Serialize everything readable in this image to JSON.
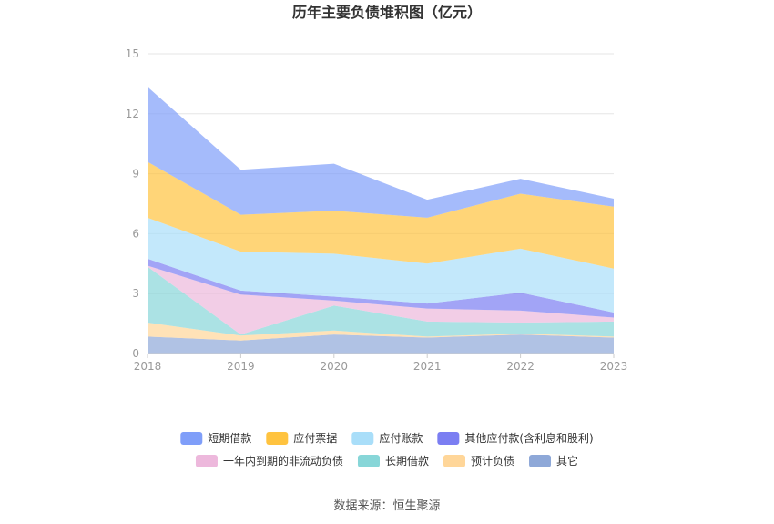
{
  "chart_data": {
    "type": "area",
    "stacked": true,
    "title": "历年主要负债堆积图（亿元）",
    "xlabel": "",
    "ylabel": "",
    "x": [
      "2018",
      "2019",
      "2020",
      "2021",
      "2022",
      "2023"
    ],
    "ylim": [
      0,
      15
    ],
    "yticks": [
      0,
      3,
      6,
      9,
      12,
      15
    ],
    "grid": true,
    "legend_position": "bottom",
    "series": [
      {
        "name": "其它",
        "color": "#8ea8d8",
        "values": [
          0.85,
          0.65,
          0.95,
          0.8,
          0.95,
          0.8
        ]
      },
      {
        "name": "预计负债",
        "color": "#ffd699",
        "values": [
          0.7,
          0.25,
          0.2,
          0.05,
          0.05,
          0.05
        ]
      },
      {
        "name": "长期借款",
        "color": "#87d6d8",
        "values": [
          2.8,
          0.05,
          1.25,
          0.75,
          0.55,
          0.75
        ]
      },
      {
        "name": "一年内到期的非流动负债",
        "color": "#edb8dc",
        "values": [
          0.05,
          2.0,
          0.25,
          0.65,
          0.6,
          0.2
        ]
      },
      {
        "name": "其他应付款(含利息和股利)",
        "color": "#7b7ef2",
        "values": [
          0.35,
          0.2,
          0.2,
          0.25,
          0.9,
          0.25
        ]
      },
      {
        "name": "应付账款",
        "color": "#a9def9",
        "values": [
          2.05,
          1.95,
          2.15,
          2.0,
          2.2,
          2.2
        ]
      },
      {
        "name": "应付票据",
        "color": "#ffc33f",
        "values": [
          2.8,
          1.85,
          2.15,
          2.3,
          2.75,
          3.1
        ]
      },
      {
        "name": "短期借款",
        "color": "#7f9ef9",
        "values": [
          3.75,
          2.25,
          2.35,
          0.9,
          0.75,
          0.4
        ]
      }
    ]
  },
  "source_text": "数据来源：恒生聚源"
}
